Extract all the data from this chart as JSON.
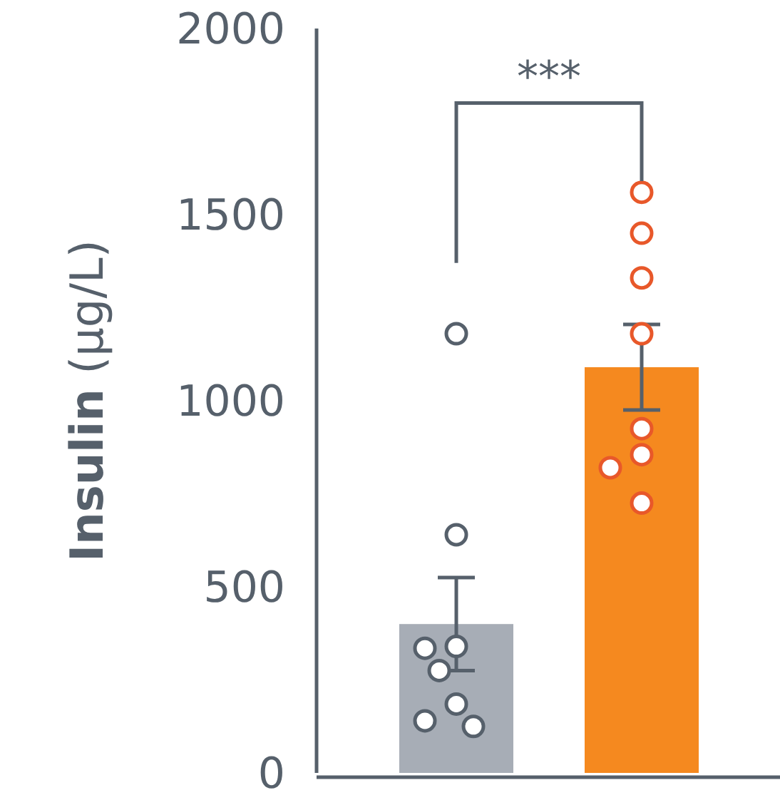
{
  "chart_data": {
    "type": "bar",
    "ylabel": "Insulin (μg/L)",
    "categories": [
      null,
      null
    ],
    "values": [
      400,
      1090
    ],
    "colors": [
      "#a7adb6",
      "#f5891f"
    ],
    "errors": [
      125,
      115
    ],
    "series": [
      {
        "type": "scatter",
        "colors": [
          "#56606b",
          "#e8582a"
        ],
        "values": [
          1180,
          1560
        ]
      },
      {
        "type": "scatter",
        "colors": [
          "#56606b",
          "#e8582a"
        ],
        "values": [
          640,
          1450
        ]
      },
      {
        "type": "scatter",
        "colors": [
          "#56606b",
          "#e8582a"
        ],
        "values": [
          340,
          1330
        ]
      },
      {
        "type": "scatter",
        "colors": [
          "#56606b",
          "#e8582a"
        ],
        "values": [
          335,
          1180
        ]
      },
      {
        "type": "scatter",
        "colors": [
          "#56606b",
          "#e8582a"
        ],
        "values": [
          275,
          925
        ]
      },
      {
        "type": "scatter",
        "colors": [
          "#56606b",
          "#e8582a"
        ],
        "values": [
          185,
          855
        ]
      },
      {
        "type": "scatter",
        "colors": [
          "#56606b",
          "#e8582a"
        ],
        "values": [
          140,
          820
        ]
      },
      {
        "type": "scatter",
        "colors": [
          "#56606b",
          "#e8582a"
        ],
        "values": [
          125,
          725
        ]
      }
    ],
    "ylim": [
      0,
      2000
    ],
    "yticks": [
      0,
      500,
      1000,
      1500,
      2000
    ],
    "grid": false,
    "marker": "circle",
    "annotations": [
      "***"
    ]
  }
}
